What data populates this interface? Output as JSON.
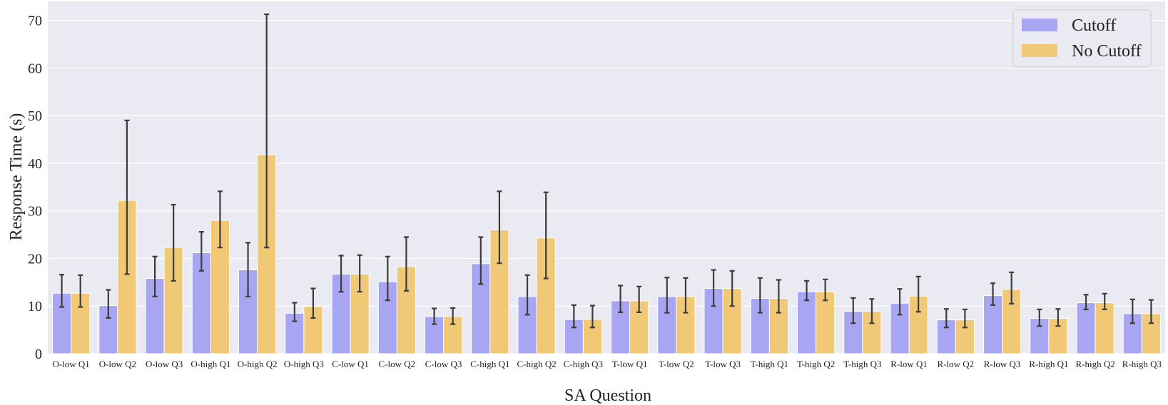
{
  "chart_data": {
    "type": "bar",
    "xlabel": "SA Question",
    "ylabel": "Response Time (s)",
    "ylim": [
      0,
      74
    ],
    "yticks": [
      0,
      10,
      20,
      30,
      40,
      50,
      60,
      70
    ],
    "grid": true,
    "legend_position": "top-right",
    "colors": {
      "background": "#EAEAF2",
      "grid": "#FFFFFF",
      "Cutoff": "#A8A6F2",
      "No Cutoff": "#F0C876",
      "error_bar": "#3C3C3C"
    },
    "categories": [
      "O-low Q1",
      "O-low Q2",
      "O-low Q3",
      "O-high Q1",
      "O-high Q2",
      "O-high Q3",
      "C-low Q1",
      "C-low Q2",
      "C-low Q3",
      "C-high Q1",
      "C-high Q2",
      "C-high Q3",
      "T-low Q1",
      "T-low Q2",
      "T-low Q3",
      "T-high Q1",
      "T-high Q2",
      "T-high Q3",
      "R-low Q1",
      "R-low Q2",
      "R-low Q3",
      "R-high Q1",
      "R-high Q2",
      "R-high Q3"
    ],
    "series": [
      {
        "name": "Cutoff",
        "values": [
          12.7,
          10.1,
          15.8,
          21.2,
          17.6,
          8.5,
          16.7,
          15.1,
          7.8,
          18.9,
          12.0,
          7.2,
          11.1,
          12.0,
          13.7,
          11.6,
          13.0,
          8.9,
          10.6,
          7.1,
          12.2,
          7.4,
          10.7,
          8.4
        ],
        "err_low": [
          9.8,
          7.5,
          12.0,
          17.4,
          12.0,
          6.8,
          13.0,
          11.2,
          6.2,
          14.6,
          8.2,
          5.5,
          8.7,
          8.6,
          10.0,
          8.6,
          11.2,
          6.4,
          8.2,
          5.5,
          10.2,
          5.8,
          9.3,
          6.4
        ],
        "err_high": [
          16.6,
          13.4,
          20.4,
          25.6,
          23.3,
          10.7,
          20.6,
          20.4,
          9.5,
          24.5,
          16.5,
          10.2,
          14.3,
          16.0,
          17.6,
          15.9,
          15.3,
          11.7,
          13.6,
          9.4,
          14.8,
          9.3,
          12.4,
          11.4
        ]
      },
      {
        "name": "No Cutoff",
        "values": [
          12.7,
          32.2,
          22.3,
          28.0,
          41.8,
          9.9,
          16.7,
          18.3,
          7.8,
          26.0,
          24.3,
          7.2,
          11.1,
          12.0,
          13.7,
          11.6,
          13.0,
          8.9,
          12.1,
          7.1,
          13.5,
          7.4,
          10.7,
          8.4
        ],
        "err_low": [
          9.8,
          16.7,
          15.3,
          22.3,
          22.3,
          7.5,
          13.0,
          13.2,
          6.2,
          19.0,
          15.8,
          5.5,
          8.7,
          8.6,
          10.0,
          8.6,
          11.2,
          6.4,
          8.8,
          5.5,
          10.5,
          5.8,
          9.3,
          6.4
        ],
        "err_high": [
          16.5,
          49.0,
          31.3,
          34.1,
          71.3,
          13.7,
          20.7,
          24.5,
          9.6,
          34.1,
          33.9,
          10.1,
          14.1,
          15.9,
          17.4,
          15.5,
          15.6,
          11.5,
          16.2,
          9.3,
          17.1,
          9.4,
          12.6,
          11.3
        ]
      }
    ]
  }
}
